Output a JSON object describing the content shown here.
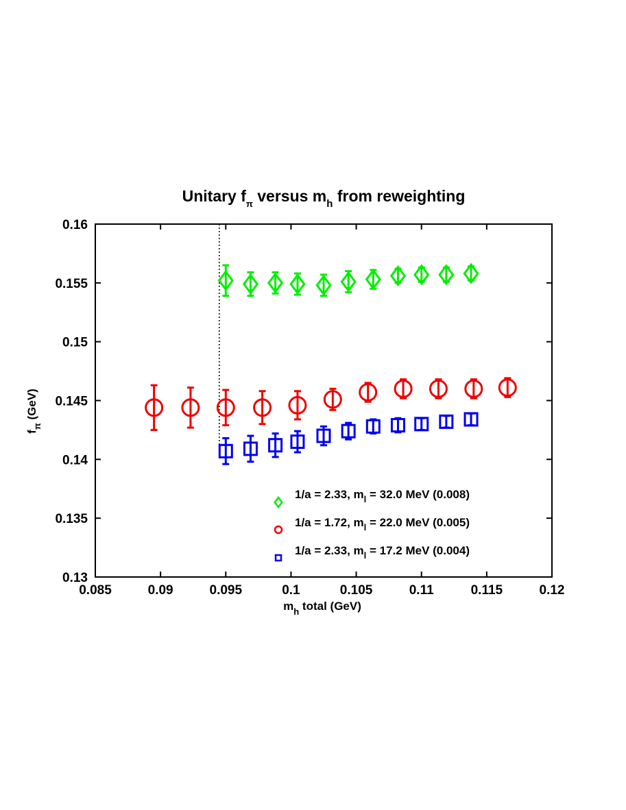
{
  "chart_data": {
    "type": "scatter",
    "title": {
      "pre": "Unitary f",
      "sub1": "π",
      "mid": " versus m",
      "sub2": "h",
      "post": " from reweighting"
    },
    "xlabel": {
      "pre": "m",
      "sub": "h",
      "post": " total (GeV)"
    },
    "ylabel": {
      "pre": "f",
      "sub": "π",
      "post": " (GeV)"
    },
    "xlim": [
      0.085,
      0.12
    ],
    "ylim": [
      0.13,
      0.16
    ],
    "x_ticks": [
      0.085,
      0.09,
      0.095,
      0.1,
      0.105,
      0.11,
      0.115,
      0.12
    ],
    "x_tick_labels": [
      "0.085",
      "0.09",
      "0.095",
      "0.1",
      "0.105",
      "0.11",
      "0.115",
      "0.12"
    ],
    "y_ticks": [
      0.13,
      0.135,
      0.14,
      0.145,
      0.15,
      0.155,
      0.16
    ],
    "y_tick_labels": [
      "0.13",
      "0.135",
      "0.14",
      "0.145",
      "0.15",
      "0.155",
      "0.16"
    ],
    "grid": false,
    "legend_position": "bottom-right",
    "vline": {
      "x": 0.0945,
      "ymin": 0.14,
      "ymax": 0.16,
      "style": "dotted",
      "color": "#000000"
    },
    "series": [
      {
        "name": "1/a = 2.33, m_l = 32.0 MeV (0.008)",
        "legend": {
          "pre": "1/a = 2.33, m",
          "sub": "l",
          "post": " = 32.0 MeV (0.008)"
        },
        "marker": "diamond",
        "color": "#00ee00",
        "x": [
          0.095,
          0.0969,
          0.0988,
          0.1005,
          0.1025,
          0.1044,
          0.1063,
          0.1082,
          0.11,
          0.1119,
          0.1138
        ],
        "y": [
          0.1552,
          0.1549,
          0.155,
          0.1549,
          0.1548,
          0.1551,
          0.1553,
          0.1556,
          0.1557,
          0.1557,
          0.1558
        ],
        "err": [
          0.0013,
          0.001,
          0.0009,
          0.0009,
          0.0009,
          0.0009,
          0.0008,
          0.0006,
          0.0006,
          0.0006,
          0.0006
        ]
      },
      {
        "name": "1/a = 1.72, m_l = 22.0 MeV (0.005)",
        "legend": {
          "pre": "1/a = 1.72, m",
          "sub": "l",
          "post": " = 22.0 MeV (0.005)"
        },
        "marker": "circle",
        "color": "#ee0000",
        "x": [
          0.0895,
          0.0923,
          0.095,
          0.0978,
          0.1005,
          0.1032,
          0.1059,
          0.1086,
          0.1113,
          0.114,
          0.1166
        ],
        "y": [
          0.1444,
          0.1444,
          0.1444,
          0.1444,
          0.1446,
          0.1451,
          0.1457,
          0.146,
          0.146,
          0.146,
          0.1461
        ],
        "err": [
          0.0019,
          0.0017,
          0.0015,
          0.0014,
          0.0012,
          0.0009,
          0.0008,
          0.0008,
          0.0008,
          0.0008,
          0.0008
        ]
      },
      {
        "name": "1/a = 2.33, m_l = 17.2 MeV (0.004)",
        "legend": {
          "pre": "1/a = 2.33, m",
          "sub": "l",
          "post": " = 17.2 MeV (0.004)"
        },
        "marker": "square",
        "color": "#0000ee",
        "x": [
          0.095,
          0.0969,
          0.0988,
          0.1005,
          0.1025,
          0.1044,
          0.1063,
          0.1082,
          0.11,
          0.1119,
          0.1138
        ],
        "y": [
          0.1407,
          0.1409,
          0.1412,
          0.1415,
          0.142,
          0.1424,
          0.1428,
          0.1429,
          0.143,
          0.1432,
          0.1434
        ],
        "err": [
          0.0011,
          0.0011,
          0.001,
          0.0009,
          0.0008,
          0.0007,
          0.0006,
          0.0006,
          0.0005,
          0.0005,
          0.0005
        ]
      }
    ]
  }
}
